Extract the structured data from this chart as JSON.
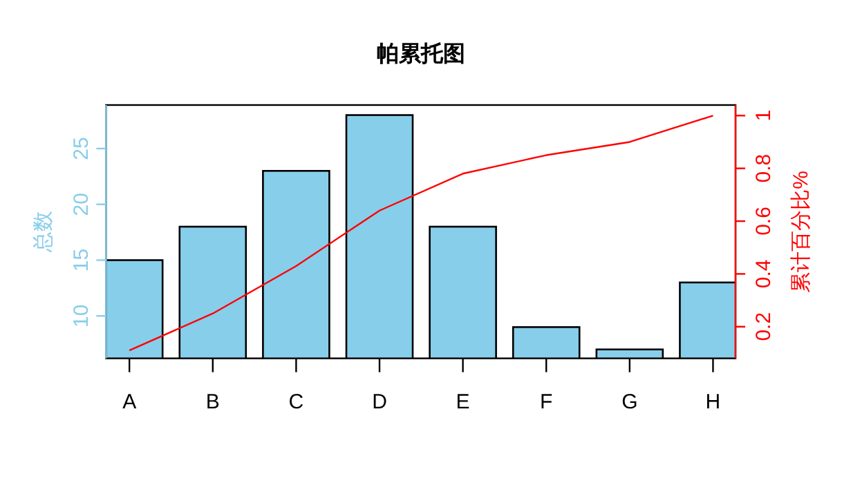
{
  "chart_data": {
    "type": "bar",
    "title": "帕累托图",
    "ylabel": "总数",
    "y2label": "累计百分比%",
    "categories": [
      "A",
      "B",
      "C",
      "D",
      "E",
      "F",
      "G",
      "H"
    ],
    "series": [
      {
        "color": "#87ceeb",
        "values": [
          15,
          18,
          23,
          28,
          18,
          9,
          7,
          13
        ]
      },
      {
        "type": "line",
        "axis": "y2",
        "color": "#ff0000",
        "values": [
          0.11,
          0.25,
          0.43,
          0.64,
          0.78,
          0.85,
          0.9,
          1
        ]
      }
    ],
    "ylim": [
      6.2,
      28.9
    ],
    "yticks": [
      10,
      15,
      20,
      25
    ],
    "y2lim": [
      0.08,
      1.04
    ],
    "y2ticks": [
      0.2,
      0.4,
      0.6,
      0.8,
      1
    ],
    "grid": false
  }
}
